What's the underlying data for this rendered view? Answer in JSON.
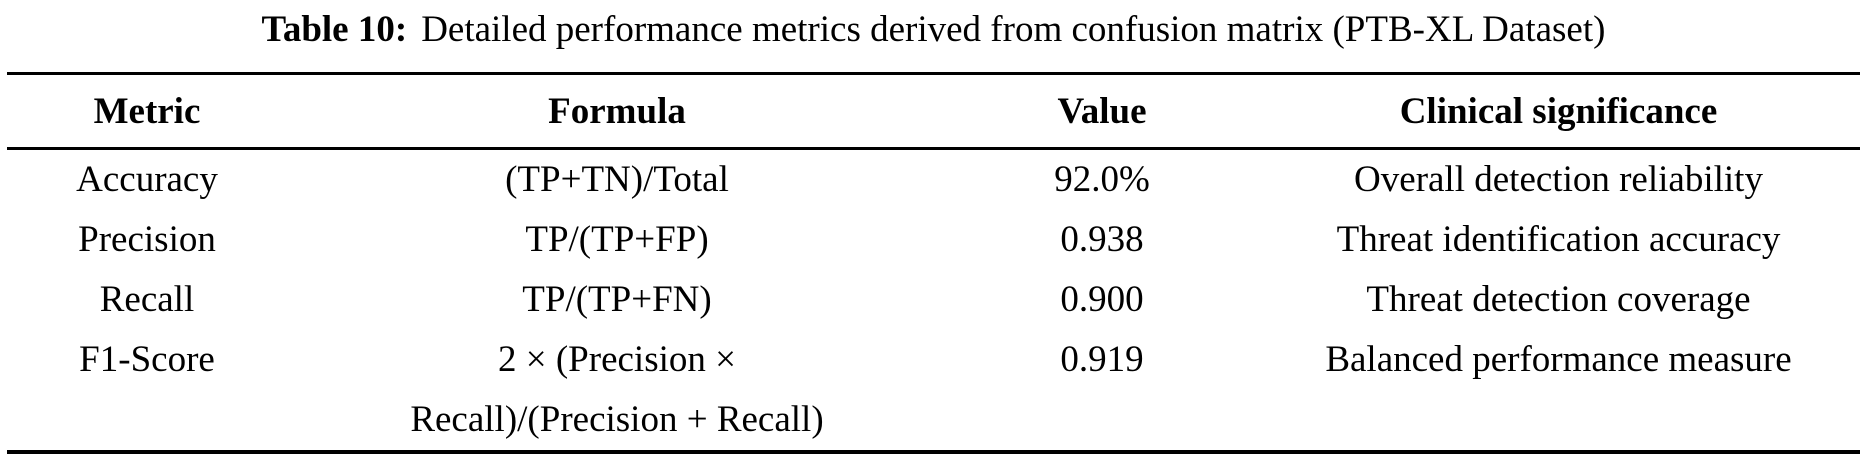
{
  "title": {
    "label": "Table 10:",
    "text": "Detailed performance metrics derived from confusion matrix (PTB-XL Dataset)"
  },
  "colors": {
    "text": "#000000",
    "background": "#ffffff",
    "rule": "#000000"
  },
  "table": {
    "columns": [
      "Metric",
      "Formula",
      "Value",
      "Clinical significance"
    ],
    "rows": [
      {
        "metric": "Accuracy",
        "formula": "(TP+TN)/Total",
        "value": "92.0%",
        "significance": "Overall detection reliability"
      },
      {
        "metric": "Precision",
        "formula": "TP/(TP+FP)",
        "value": "0.938",
        "significance": "Threat identification accuracy"
      },
      {
        "metric": "Recall",
        "formula": "TP/(TP+FN)",
        "value": "0.900",
        "significance": "Threat detection coverage"
      },
      {
        "metric": "F1-Score",
        "formula": "2 × (Precision ×\nRecall)/(Precision + Recall)",
        "value": "0.919",
        "significance": "Balanced performance measure"
      }
    ]
  }
}
